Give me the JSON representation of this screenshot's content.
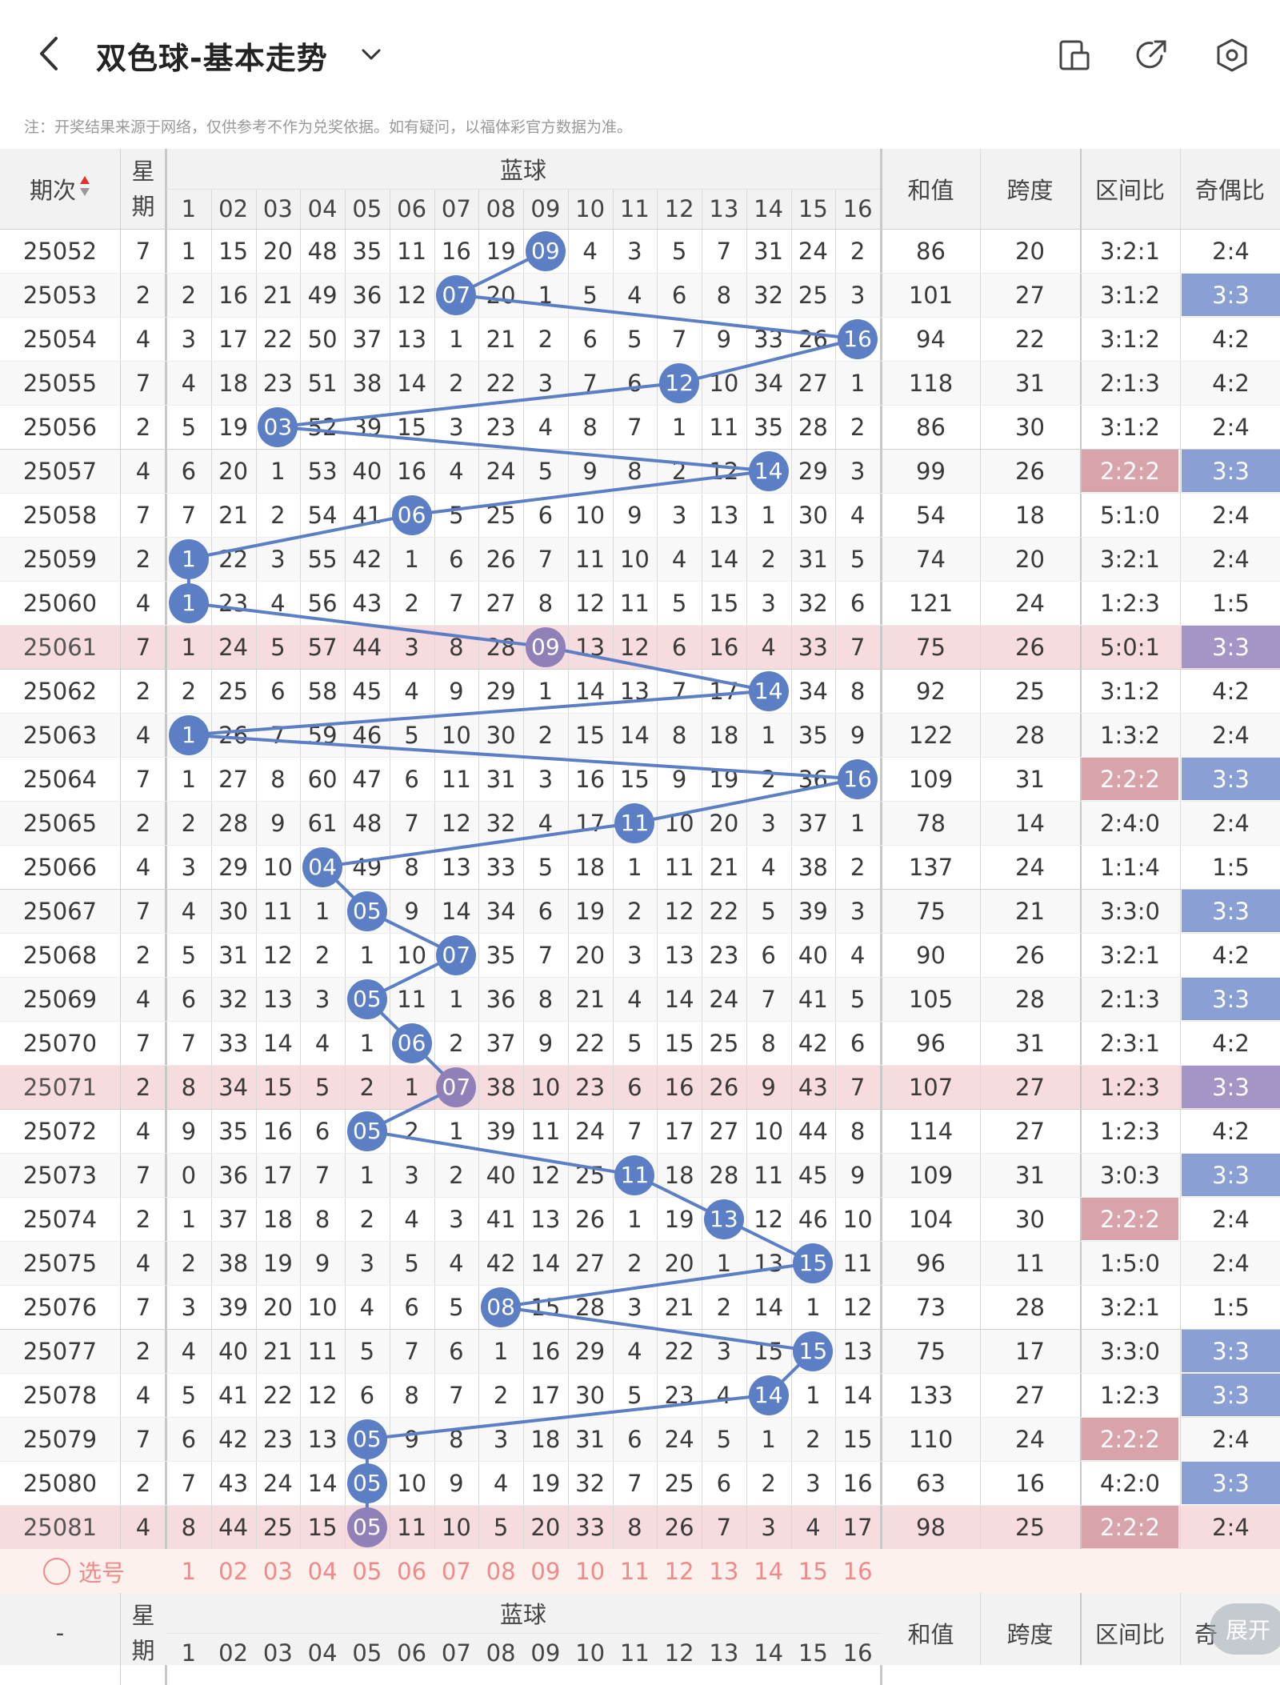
{
  "header": {
    "title": "双色球-基本走势",
    "back_icon": "back-arrow-icon",
    "dropdown_icon": "chevron-down-icon",
    "action_icons": [
      "layout-toggle-icon",
      "share-icon",
      "settings-icon"
    ]
  },
  "note": "注：开奖结果来源于网络，仅供参考不作为兑奖依据。如有疑问，以福体彩官方数据为准。",
  "table": {
    "headers": {
      "period": "期次",
      "weekday": "星期",
      "blue_group": "蓝球",
      "sum": "和值",
      "span": "跨度",
      "zone_ratio": "区间比",
      "odd_even_ratio": "奇偶比"
    },
    "blue_columns": [
      "1",
      "02",
      "03",
      "04",
      "05",
      "06",
      "07",
      "08",
      "09",
      "10",
      "11",
      "12",
      "13",
      "14",
      "15",
      "16"
    ],
    "rows": [
      {
        "period": "25052",
        "weekday": "7",
        "blue": 9,
        "cells": [
          "1",
          "15",
          "20",
          "48",
          "35",
          "11",
          "16",
          "19",
          "09",
          "4",
          "3",
          "5",
          "7",
          "31",
          "24",
          "2"
        ],
        "sum": "86",
        "span": "20",
        "zone": "3:2:1",
        "oe": "2:4"
      },
      {
        "period": "25053",
        "weekday": "2",
        "blue": 7,
        "cells": [
          "2",
          "16",
          "21",
          "49",
          "36",
          "12",
          "07",
          "20",
          "1",
          "5",
          "4",
          "6",
          "8",
          "32",
          "25",
          "3"
        ],
        "sum": "101",
        "span": "27",
        "zone": "3:1:2",
        "oe": "3:3"
      },
      {
        "period": "25054",
        "weekday": "4",
        "blue": 16,
        "cells": [
          "3",
          "17",
          "22",
          "50",
          "37",
          "13",
          "1",
          "21",
          "2",
          "6",
          "5",
          "7",
          "9",
          "33",
          "26",
          "16"
        ],
        "sum": "94",
        "span": "22",
        "zone": "3:1:2",
        "oe": "4:2"
      },
      {
        "period": "25055",
        "weekday": "7",
        "blue": 12,
        "cells": [
          "4",
          "18",
          "23",
          "51",
          "38",
          "14",
          "2",
          "22",
          "3",
          "7",
          "6",
          "12",
          "10",
          "34",
          "27",
          "1"
        ],
        "sum": "118",
        "span": "31",
        "zone": "2:1:3",
        "oe": "4:2"
      },
      {
        "period": "25056",
        "weekday": "2",
        "blue": 3,
        "cells": [
          "5",
          "19",
          "03",
          "52",
          "39",
          "15",
          "3",
          "23",
          "4",
          "8",
          "7",
          "1",
          "11",
          "35",
          "28",
          "2"
        ],
        "sum": "86",
        "span": "30",
        "zone": "3:1:2",
        "oe": "2:4"
      },
      {
        "period": "25057",
        "weekday": "4",
        "blue": 14,
        "cells": [
          "6",
          "20",
          "1",
          "53",
          "40",
          "16",
          "4",
          "24",
          "5",
          "9",
          "8",
          "2",
          "12",
          "14",
          "29",
          "3"
        ],
        "sum": "99",
        "span": "26",
        "zone": "2:2:2",
        "oe": "3:3"
      },
      {
        "period": "25058",
        "weekday": "7",
        "blue": 6,
        "cells": [
          "7",
          "21",
          "2",
          "54",
          "41",
          "06",
          "5",
          "25",
          "6",
          "10",
          "9",
          "3",
          "13",
          "1",
          "30",
          "4"
        ],
        "sum": "54",
        "span": "18",
        "zone": "5:1:0",
        "oe": "2:4"
      },
      {
        "period": "25059",
        "weekday": "2",
        "blue": 1,
        "cells": [
          "1",
          "22",
          "3",
          "55",
          "42",
          "1",
          "6",
          "26",
          "7",
          "11",
          "10",
          "4",
          "14",
          "2",
          "31",
          "5"
        ],
        "sum": "74",
        "span": "20",
        "zone": "3:2:1",
        "oe": "2:4"
      },
      {
        "period": "25060",
        "weekday": "4",
        "blue": 1,
        "cells": [
          "1",
          "23",
          "4",
          "56",
          "43",
          "2",
          "7",
          "27",
          "8",
          "12",
          "11",
          "5",
          "15",
          "3",
          "32",
          "6"
        ],
        "sum": "121",
        "span": "24",
        "zone": "1:2:3",
        "oe": "1:5"
      },
      {
        "period": "25061",
        "weekday": "7",
        "blue": 9,
        "cells": [
          "1",
          "24",
          "5",
          "57",
          "44",
          "3",
          "8",
          "28",
          "09",
          "13",
          "12",
          "6",
          "16",
          "4",
          "33",
          "7"
        ],
        "sum": "75",
        "span": "26",
        "zone": "5:0:1",
        "oe": "3:3"
      },
      {
        "period": "25062",
        "weekday": "2",
        "blue": 14,
        "cells": [
          "2",
          "25",
          "6",
          "58",
          "45",
          "4",
          "9",
          "29",
          "1",
          "14",
          "13",
          "7",
          "17",
          "14",
          "34",
          "8"
        ],
        "sum": "92",
        "span": "25",
        "zone": "3:1:2",
        "oe": "4:2"
      },
      {
        "period": "25063",
        "weekday": "4",
        "blue": 1,
        "cells": [
          "1",
          "26",
          "7",
          "59",
          "46",
          "5",
          "10",
          "30",
          "2",
          "15",
          "14",
          "8",
          "18",
          "1",
          "35",
          "9"
        ],
        "sum": "122",
        "span": "28",
        "zone": "1:3:2",
        "oe": "2:4"
      },
      {
        "period": "25064",
        "weekday": "7",
        "blue": 16,
        "cells": [
          "1",
          "27",
          "8",
          "60",
          "47",
          "6",
          "11",
          "31",
          "3",
          "16",
          "15",
          "9",
          "19",
          "2",
          "36",
          "16"
        ],
        "sum": "109",
        "span": "31",
        "zone": "2:2:2",
        "oe": "3:3"
      },
      {
        "period": "25065",
        "weekday": "2",
        "blue": 11,
        "cells": [
          "2",
          "28",
          "9",
          "61",
          "48",
          "7",
          "12",
          "32",
          "4",
          "17",
          "11",
          "10",
          "20",
          "3",
          "37",
          "1"
        ],
        "sum": "78",
        "span": "14",
        "zone": "2:4:0",
        "oe": "2:4"
      },
      {
        "period": "25066",
        "weekday": "4",
        "blue": 4,
        "cells": [
          "3",
          "29",
          "10",
          "04",
          "49",
          "8",
          "13",
          "33",
          "5",
          "18",
          "1",
          "11",
          "21",
          "4",
          "38",
          "2"
        ],
        "sum": "137",
        "span": "24",
        "zone": "1:1:4",
        "oe": "1:5"
      },
      {
        "period": "25067",
        "weekday": "7",
        "blue": 5,
        "cells": [
          "4",
          "30",
          "11",
          "1",
          "05",
          "9",
          "14",
          "34",
          "6",
          "19",
          "2",
          "12",
          "22",
          "5",
          "39",
          "3"
        ],
        "sum": "75",
        "span": "21",
        "zone": "3:3:0",
        "oe": "3:3"
      },
      {
        "period": "25068",
        "weekday": "2",
        "blue": 7,
        "cells": [
          "5",
          "31",
          "12",
          "2",
          "1",
          "10",
          "07",
          "35",
          "7",
          "20",
          "3",
          "13",
          "23",
          "6",
          "40",
          "4"
        ],
        "sum": "90",
        "span": "26",
        "zone": "3:2:1",
        "oe": "4:2"
      },
      {
        "period": "25069",
        "weekday": "4",
        "blue": 5,
        "cells": [
          "6",
          "32",
          "13",
          "3",
          "05",
          "11",
          "1",
          "36",
          "8",
          "21",
          "4",
          "14",
          "24",
          "7",
          "41",
          "5"
        ],
        "sum": "105",
        "span": "28",
        "zone": "2:1:3",
        "oe": "3:3"
      },
      {
        "period": "25070",
        "weekday": "7",
        "blue": 6,
        "cells": [
          "7",
          "33",
          "14",
          "4",
          "1",
          "06",
          "2",
          "37",
          "9",
          "22",
          "5",
          "15",
          "25",
          "8",
          "42",
          "6"
        ],
        "sum": "96",
        "span": "31",
        "zone": "2:3:1",
        "oe": "4:2"
      },
      {
        "period": "25071",
        "weekday": "2",
        "blue": 7,
        "cells": [
          "8",
          "34",
          "15",
          "5",
          "2",
          "1",
          "07",
          "38",
          "10",
          "23",
          "6",
          "16",
          "26",
          "9",
          "43",
          "7"
        ],
        "sum": "107",
        "span": "27",
        "zone": "1:2:3",
        "oe": "3:3"
      },
      {
        "period": "25072",
        "weekday": "4",
        "blue": 5,
        "cells": [
          "9",
          "35",
          "16",
          "6",
          "05",
          "2",
          "1",
          "39",
          "11",
          "24",
          "7",
          "17",
          "27",
          "10",
          "44",
          "8"
        ],
        "sum": "114",
        "span": "27",
        "zone": "1:2:3",
        "oe": "4:2"
      },
      {
        "period": "25073",
        "weekday": "7",
        "blue": 11,
        "cells": [
          "0",
          "36",
          "17",
          "7",
          "1",
          "3",
          "2",
          "40",
          "12",
          "25",
          "11",
          "18",
          "28",
          "11",
          "45",
          "9"
        ],
        "sum": "109",
        "span": "31",
        "zone": "3:0:3",
        "oe": "3:3"
      },
      {
        "period": "25074",
        "weekday": "2",
        "blue": 13,
        "cells": [
          "1",
          "37",
          "18",
          "8",
          "2",
          "4",
          "3",
          "41",
          "13",
          "26",
          "1",
          "19",
          "13",
          "12",
          "46",
          "10"
        ],
        "sum": "104",
        "span": "30",
        "zone": "2:2:2",
        "oe": "2:4"
      },
      {
        "period": "25075",
        "weekday": "4",
        "blue": 15,
        "cells": [
          "2",
          "38",
          "19",
          "9",
          "3",
          "5",
          "4",
          "42",
          "14",
          "27",
          "2",
          "20",
          "1",
          "13",
          "15",
          "11"
        ],
        "sum": "96",
        "span": "11",
        "zone": "1:5:0",
        "oe": "2:4"
      },
      {
        "period": "25076",
        "weekday": "7",
        "blue": 8,
        "cells": [
          "3",
          "39",
          "20",
          "10",
          "4",
          "6",
          "5",
          "08",
          "15",
          "28",
          "3",
          "21",
          "2",
          "14",
          "1",
          "12"
        ],
        "sum": "73",
        "span": "28",
        "zone": "3:2:1",
        "oe": "1:5"
      },
      {
        "period": "25077",
        "weekday": "2",
        "blue": 15,
        "cells": [
          "4",
          "40",
          "21",
          "11",
          "5",
          "7",
          "6",
          "1",
          "16",
          "29",
          "4",
          "22",
          "3",
          "15",
          "15",
          "13"
        ],
        "sum": "75",
        "span": "17",
        "zone": "3:3:0",
        "oe": "3:3"
      },
      {
        "period": "25078",
        "weekday": "4",
        "blue": 14,
        "cells": [
          "5",
          "41",
          "22",
          "12",
          "6",
          "8",
          "7",
          "2",
          "17",
          "30",
          "5",
          "23",
          "4",
          "14",
          "1",
          "14"
        ],
        "sum": "133",
        "span": "27",
        "zone": "1:2:3",
        "oe": "3:3"
      },
      {
        "period": "25079",
        "weekday": "7",
        "blue": 5,
        "cells": [
          "6",
          "42",
          "23",
          "13",
          "05",
          "9",
          "8",
          "3",
          "18",
          "31",
          "6",
          "24",
          "5",
          "1",
          "2",
          "15"
        ],
        "sum": "110",
        "span": "24",
        "zone": "2:2:2",
        "oe": "2:4"
      },
      {
        "period": "25080",
        "weekday": "2",
        "blue": 5,
        "cells": [
          "7",
          "43",
          "24",
          "14",
          "05",
          "10",
          "9",
          "4",
          "19",
          "32",
          "7",
          "25",
          "6",
          "2",
          "3",
          "16"
        ],
        "sum": "63",
        "span": "16",
        "zone": "4:2:0",
        "oe": "3:3"
      },
      {
        "period": "25081",
        "weekday": "4",
        "blue": 5,
        "cells": [
          "8",
          "44",
          "25",
          "15",
          "05",
          "11",
          "10",
          "5",
          "20",
          "33",
          "8",
          "26",
          "7",
          "3",
          "4",
          "17"
        ],
        "sum": "98",
        "span": "25",
        "zone": "2:2:2",
        "oe": "2:4"
      }
    ],
    "highlight_rows": [
      "25061",
      "25071",
      "25081"
    ],
    "zone_highlight": [
      "25057",
      "25064",
      "25074",
      "25079",
      "25081"
    ],
    "oe_highlight": [
      "25053",
      "25057",
      "25061",
      "25064",
      "25067",
      "25069",
      "25071",
      "25073",
      "25077",
      "25078",
      "25080"
    ],
    "select_row": {
      "label": "选号",
      "icon": "radio-circle-icon",
      "numbers": [
        "1",
        "02",
        "03",
        "04",
        "05",
        "06",
        "07",
        "08",
        "09",
        "10",
        "11",
        "12",
        "13",
        "14",
        "15",
        "16"
      ]
    },
    "footer_headers": {
      "period": "-",
      "weekday": "星期",
      "blue_group": "蓝球",
      "sum": "和值",
      "span": "跨度",
      "zone_ratio": "区间比",
      "odd_even_ratio": "奇"
    }
  },
  "expand_button": "展开",
  "colors": {
    "ball": "#5b7ec4",
    "ball_highlight_row": "#8f80b8",
    "line": "#5b7ec4",
    "row_highlight": "#f6dcdf",
    "zone_cell_highlight": "#d8a4aa",
    "oe_cell_highlight": "#8aa0d4",
    "oe_cell_highlight_row": "#a595c7",
    "header_bg": "#f2f2f2",
    "select_color": "#f08a8a"
  }
}
